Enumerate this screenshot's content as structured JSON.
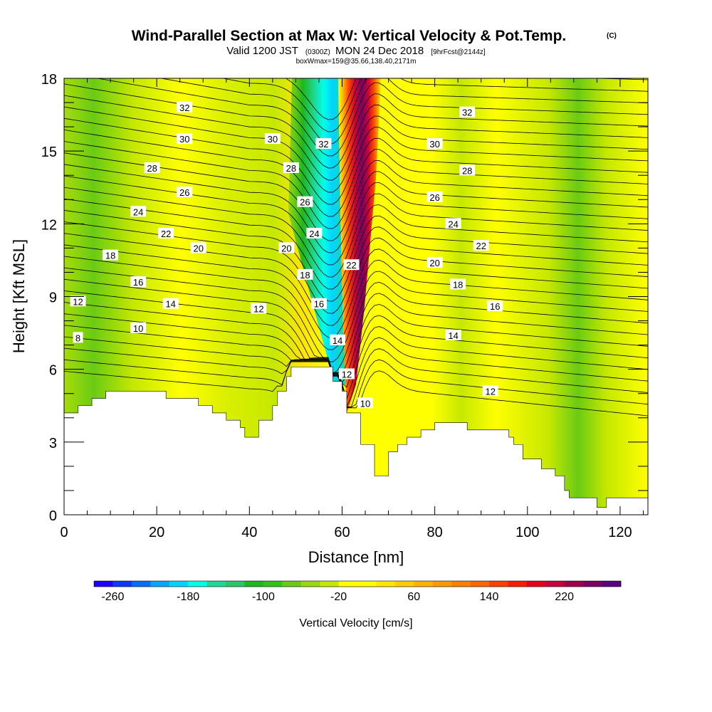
{
  "title": "Wind-Parallel Section at Max W: Vertical Velocity & Pot.Temp.",
  "copyright": "(C)",
  "subtitle_main_a": "Valid 1200 JST",
  "subtitle_small_a": "(0300Z)",
  "subtitle_main_b": "MON 24 Dec 2018",
  "subtitle_small_b": "[9hrFcst@2144z]",
  "subtitle_line3": "boxWmax=159@35.66,138.40,2171m",
  "chart_data": {
    "type": "heatmap",
    "xlabel": "Distance [nm]",
    "ylabel": "Height [Kft MSL]",
    "xlim": [
      0,
      126
    ],
    "ylim": [
      0,
      18
    ],
    "x_ticks": [
      0,
      20,
      40,
      60,
      80,
      100,
      120
    ],
    "x_tick_labels": [
      "0",
      "20",
      "40",
      "60",
      "80",
      "100",
      "120"
    ],
    "y_ticks": [
      0,
      3,
      6,
      9,
      12,
      15,
      18
    ],
    "y_tick_labels": [
      "0",
      "3",
      "6",
      "9",
      "12",
      "15",
      "18"
    ],
    "colorbar": {
      "label": "Vertical Velocity [cm/s]",
      "tick_labels": [
        "-260",
        "-180",
        "-100",
        "-20",
        "60",
        "140",
        "220"
      ],
      "range": [
        -280,
        280
      ],
      "colors": [
        "#1c00ff",
        "#0f38ff",
        "#0a6cff",
        "#08a6ff",
        "#00d4ff",
        "#00ffe6",
        "#1ed996",
        "#2ac76d",
        "#1fb61f",
        "#33c31a",
        "#6acb14",
        "#9ad80e",
        "#c6e800",
        "#ffff00",
        "#ffff00",
        "#ffe600",
        "#ffcc00",
        "#ffb300",
        "#ff9900",
        "#ff8000",
        "#ff6600",
        "#ff4000",
        "#ff1a00",
        "#e60019",
        "#c8003c",
        "#a0004b",
        "#780064",
        "#5a0082"
      ]
    },
    "terrain_profile_kft": [
      [
        0,
        4.2
      ],
      [
        3,
        4.2
      ],
      [
        3,
        4.5
      ],
      [
        6,
        4.5
      ],
      [
        6,
        4.8
      ],
      [
        9,
        4.8
      ],
      [
        9,
        5.1
      ],
      [
        22,
        5.1
      ],
      [
        22,
        4.8
      ],
      [
        29,
        4.8
      ],
      [
        29,
        4.5
      ],
      [
        32,
        4.5
      ],
      [
        32,
        4.2
      ],
      [
        35,
        4.2
      ],
      [
        35,
        3.9
      ],
      [
        38,
        3.9
      ],
      [
        38,
        3.6
      ],
      [
        39,
        3.6
      ],
      [
        39,
        3.2
      ],
      [
        42,
        3.2
      ],
      [
        42,
        3.9
      ],
      [
        45,
        3.9
      ],
      [
        45,
        4.5
      ],
      [
        46,
        4.5
      ],
      [
        46,
        5.1
      ],
      [
        48,
        5.1
      ],
      [
        48,
        5.7
      ],
      [
        49,
        5.7
      ],
      [
        49,
        6.1
      ],
      [
        58,
        6.1
      ],
      [
        58,
        5.5
      ],
      [
        60,
        5.5
      ],
      [
        60,
        5.1
      ],
      [
        61,
        5.1
      ],
      [
        61,
        4.2
      ],
      [
        62,
        4.2
      ],
      [
        62,
        4.2
      ],
      [
        64,
        4.2
      ],
      [
        64,
        2.9
      ],
      [
        67,
        2.9
      ],
      [
        67,
        1.6
      ],
      [
        70,
        1.6
      ],
      [
        70,
        2.6
      ],
      [
        72,
        2.6
      ],
      [
        72,
        2.9
      ],
      [
        74,
        2.9
      ],
      [
        74,
        3.2
      ],
      [
        77,
        3.2
      ],
      [
        77,
        3.5
      ],
      [
        80,
        3.5
      ],
      [
        80,
        3.8
      ],
      [
        87,
        3.8
      ],
      [
        87,
        3.5
      ],
      [
        96,
        3.5
      ],
      [
        96,
        3.2
      ],
      [
        97,
        3.2
      ],
      [
        97,
        2.9
      ],
      [
        99,
        2.9
      ],
      [
        99,
        2.3
      ],
      [
        103,
        2.3
      ],
      [
        103,
        1.9
      ],
      [
        106,
        1.9
      ],
      [
        106,
        1.6
      ],
      [
        108,
        1.6
      ],
      [
        108,
        1.0
      ],
      [
        109,
        1.0
      ],
      [
        109,
        0.7
      ],
      [
        115,
        0.7
      ],
      [
        115,
        0.3
      ],
      [
        117,
        0.3
      ],
      [
        117,
        0.7
      ],
      [
        126,
        0.7
      ]
    ],
    "potential_temperature_labels": [
      {
        "text": "32",
        "x": 26,
        "y": 16.8
      },
      {
        "text": "30",
        "x": 26,
        "y": 15.5
      },
      {
        "text": "28",
        "x": 19,
        "y": 14.3
      },
      {
        "text": "26",
        "x": 26,
        "y": 13.3
      },
      {
        "text": "24",
        "x": 16,
        "y": 12.5
      },
      {
        "text": "22",
        "x": 22,
        "y": 11.6
      },
      {
        "text": "20",
        "x": 29,
        "y": 11.0
      },
      {
        "text": "18",
        "x": 10,
        "y": 10.7
      },
      {
        "text": "16",
        "x": 16,
        "y": 9.6
      },
      {
        "text": "14",
        "x": 23,
        "y": 8.7
      },
      {
        "text": "12",
        "x": 3,
        "y": 8.8
      },
      {
        "text": "10",
        "x": 16,
        "y": 7.7
      },
      {
        "text": "8",
        "x": 3,
        "y": 7.3
      },
      {
        "text": "30",
        "x": 45,
        "y": 15.5
      },
      {
        "text": "28",
        "x": 49,
        "y": 14.3
      },
      {
        "text": "26",
        "x": 52,
        "y": 12.9
      },
      {
        "text": "24",
        "x": 54,
        "y": 11.6
      },
      {
        "text": "20",
        "x": 48,
        "y": 11.0
      },
      {
        "text": "18",
        "x": 52,
        "y": 9.9
      },
      {
        "text": "16",
        "x": 55,
        "y": 8.7
      },
      {
        "text": "12",
        "x": 42,
        "y": 8.5
      },
      {
        "text": "14",
        "x": 59,
        "y": 7.2
      },
      {
        "text": "12",
        "x": 61,
        "y": 5.8
      },
      {
        "text": "10",
        "x": 65,
        "y": 4.6
      },
      {
        "text": "32",
        "x": 56,
        "y": 15.3
      },
      {
        "text": "22",
        "x": 62,
        "y": 10.3
      },
      {
        "text": "32",
        "x": 87,
        "y": 16.6
      },
      {
        "text": "30",
        "x": 80,
        "y": 15.3
      },
      {
        "text": "28",
        "x": 87,
        "y": 14.2
      },
      {
        "text": "26",
        "x": 80,
        "y": 13.1
      },
      {
        "text": "24",
        "x": 84,
        "y": 12.0
      },
      {
        "text": "22",
        "x": 90,
        "y": 11.1
      },
      {
        "text": "20",
        "x": 80,
        "y": 10.4
      },
      {
        "text": "18",
        "x": 85,
        "y": 9.5
      },
      {
        "text": "16",
        "x": 93,
        "y": 8.6
      },
      {
        "text": "14",
        "x": 84,
        "y": 7.4
      },
      {
        "text": "12",
        "x": 92,
        "y": 5.1
      }
    ]
  }
}
